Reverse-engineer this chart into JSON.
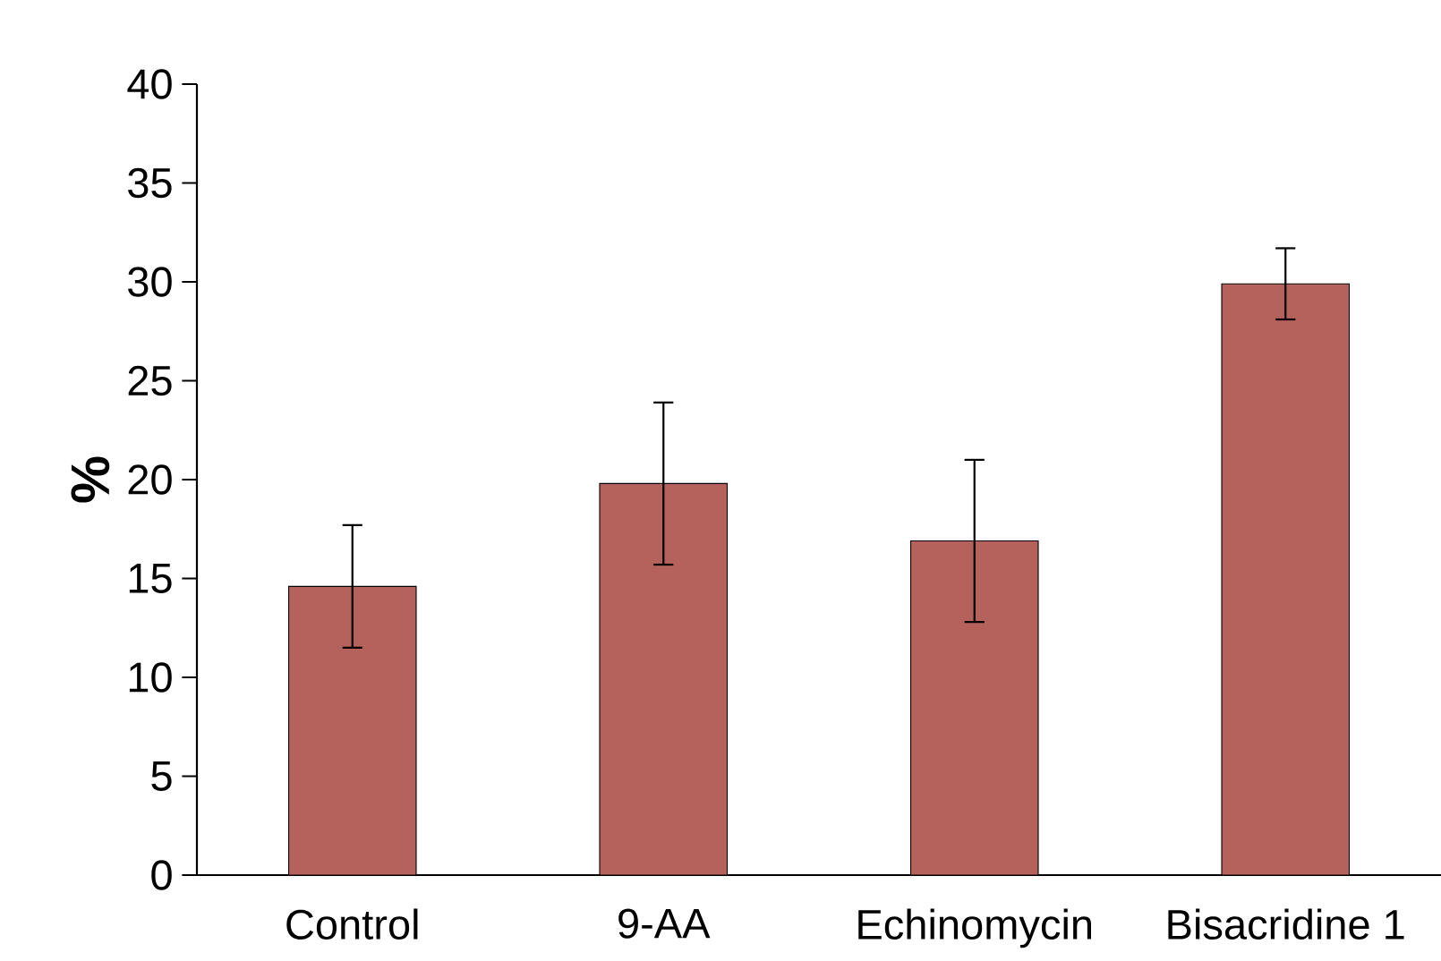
{
  "chart_data": {
    "type": "bar",
    "ylabel": "%",
    "categories": [
      "Control",
      "9-AA",
      "Echinomycin",
      "Bisacridine 1"
    ],
    "values": [
      14.6,
      19.8,
      16.9,
      29.9
    ],
    "errors": [
      3.1,
      4.1,
      4.1,
      1.8
    ],
    "color": "#b5615c",
    "ylim": [
      0,
      40
    ],
    "yticks": [
      0,
      5,
      10,
      15,
      20,
      25,
      30,
      35,
      40
    ]
  }
}
